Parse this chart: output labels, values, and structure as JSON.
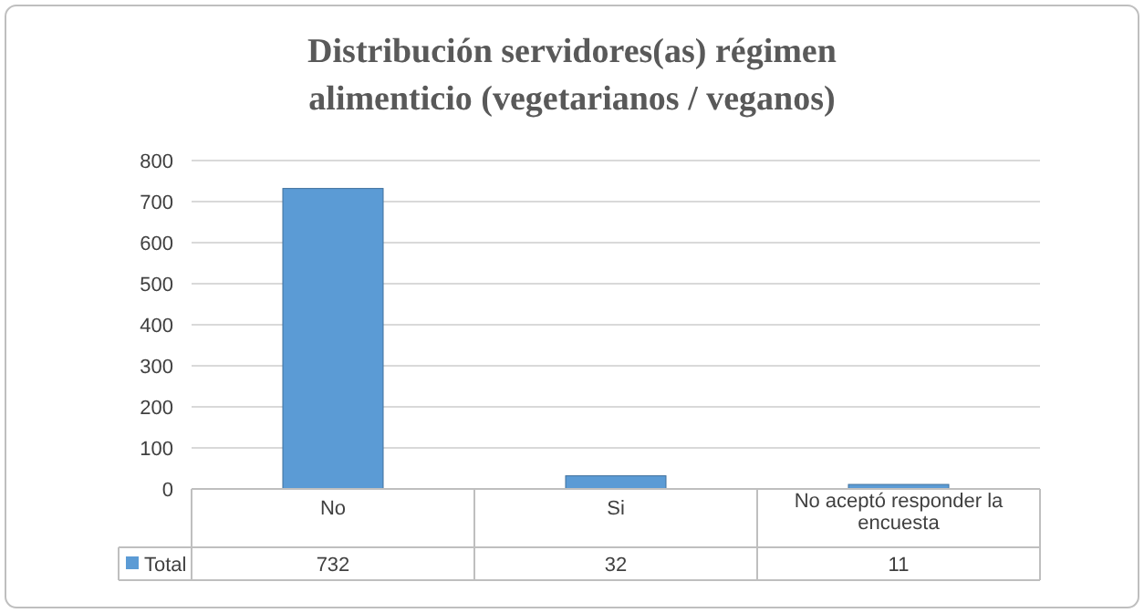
{
  "chart_data": {
    "type": "bar",
    "title": "Distribución servidores(as) régimen alimenticio (vegetarianos / veganos)",
    "categories": [
      "No",
      "Si",
      "No aceptó responder la encuesta"
    ],
    "series": [
      {
        "name": "Total",
        "color": "#5b9bd5",
        "values": [
          732,
          32,
          11
        ]
      }
    ],
    "ylim": [
      0,
      800
    ],
    "yticks": [
      0,
      100,
      200,
      300,
      400,
      500,
      600,
      700,
      800
    ],
    "grid": "y",
    "data_labels": true,
    "legend": "bottom"
  }
}
